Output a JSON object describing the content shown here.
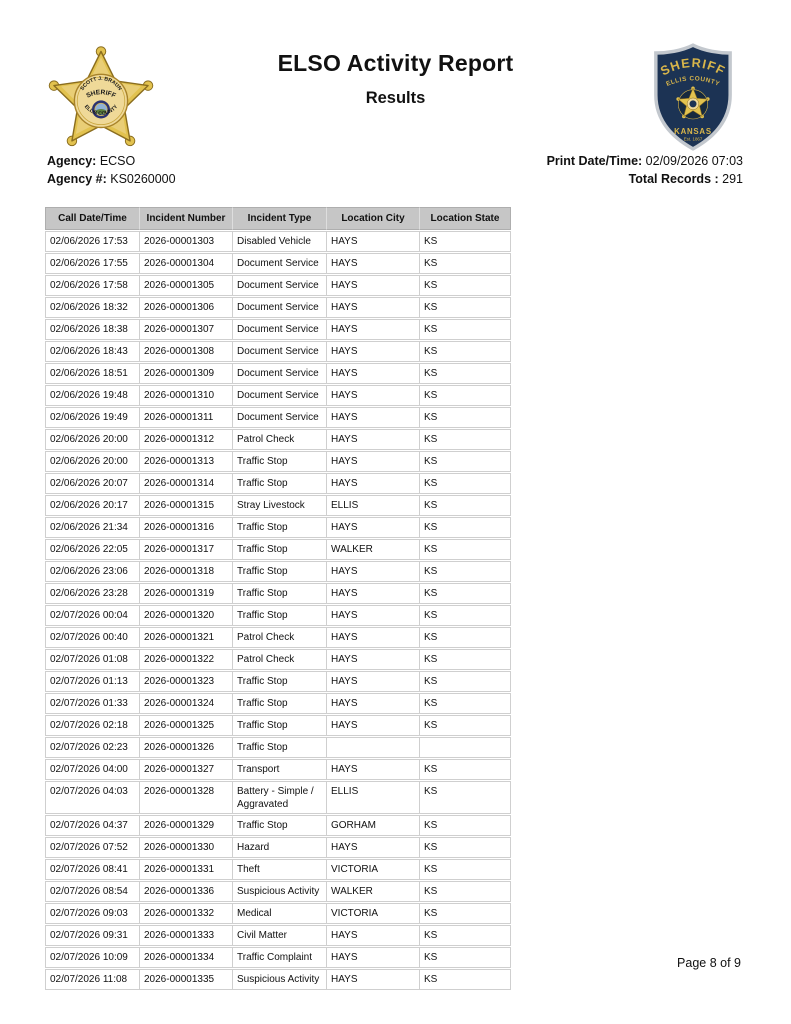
{
  "header": {
    "title": "ELSO Activity Report",
    "subtitle": "Results",
    "left_badge": {
      "name_text": "SCOTT J. BRAUN",
      "title_text": "SHERIFF",
      "county_text": "ELLIS COUNTY"
    },
    "right_badge": {
      "title_text": "SHERIFF",
      "county_text": "ELLIS COUNTY",
      "state_text": "KANSAS",
      "est_text": "Est. 1867"
    }
  },
  "info": {
    "agency_label": "Agency:",
    "agency_value": "ECSO",
    "agency_num_label": "Agency #:",
    "agency_num_value": "KS0260000",
    "print_label": "Print Date/Time:",
    "print_value": "02/09/2026 07:03",
    "total_label": "Total Records :",
    "total_value": "291"
  },
  "colors": {
    "table_header_bg": "#c6c6c6",
    "badge_gold": "#e2c24f",
    "badge_navy": "#1c3354"
  },
  "table": {
    "columns": [
      "Call Date/Time",
      "Incident Number",
      "Incident Type",
      "Location City",
      "Location State"
    ],
    "rows": [
      [
        "02/06/2026 17:53",
        "2026-00001303",
        "Disabled Vehicle",
        "HAYS",
        "KS"
      ],
      [
        "02/06/2026 17:55",
        "2026-00001304",
        "Document Service",
        "HAYS",
        "KS"
      ],
      [
        "02/06/2026 17:58",
        "2026-00001305",
        "Document Service",
        "HAYS",
        "KS"
      ],
      [
        "02/06/2026 18:32",
        "2026-00001306",
        "Document Service",
        "HAYS",
        "KS"
      ],
      [
        "02/06/2026 18:38",
        "2026-00001307",
        "Document Service",
        "HAYS",
        "KS"
      ],
      [
        "02/06/2026 18:43",
        "2026-00001308",
        "Document Service",
        "HAYS",
        "KS"
      ],
      [
        "02/06/2026 18:51",
        "2026-00001309",
        "Document Service",
        "HAYS",
        "KS"
      ],
      [
        "02/06/2026 19:48",
        "2026-00001310",
        "Document Service",
        "HAYS",
        "KS"
      ],
      [
        "02/06/2026 19:49",
        "2026-00001311",
        "Document Service",
        "HAYS",
        "KS"
      ],
      [
        "02/06/2026 20:00",
        "2026-00001312",
        "Patrol Check",
        "HAYS",
        "KS"
      ],
      [
        "02/06/2026 20:00",
        "2026-00001313",
        "Traffic Stop",
        "HAYS",
        "KS"
      ],
      [
        "02/06/2026 20:07",
        "2026-00001314",
        "Traffic Stop",
        "HAYS",
        "KS"
      ],
      [
        "02/06/2026 20:17",
        "2026-00001315",
        "Stray Livestock",
        "ELLIS",
        "KS"
      ],
      [
        "02/06/2026 21:34",
        "2026-00001316",
        "Traffic Stop",
        "HAYS",
        "KS"
      ],
      [
        "02/06/2026 22:05",
        "2026-00001317",
        "Traffic Stop",
        "WALKER",
        "KS"
      ],
      [
        "02/06/2026 23:06",
        "2026-00001318",
        "Traffic Stop",
        "HAYS",
        "KS"
      ],
      [
        "02/06/2026 23:28",
        "2026-00001319",
        "Traffic Stop",
        "HAYS",
        "KS"
      ],
      [
        "02/07/2026 00:04",
        "2026-00001320",
        "Traffic Stop",
        "HAYS",
        "KS"
      ],
      [
        "02/07/2026 00:40",
        "2026-00001321",
        "Patrol Check",
        "HAYS",
        "KS"
      ],
      [
        "02/07/2026 01:08",
        "2026-00001322",
        "Patrol Check",
        "HAYS",
        "KS"
      ],
      [
        "02/07/2026 01:13",
        "2026-00001323",
        "Traffic Stop",
        "HAYS",
        "KS"
      ],
      [
        "02/07/2026 01:33",
        "2026-00001324",
        "Traffic Stop",
        "HAYS",
        "KS"
      ],
      [
        "02/07/2026 02:18",
        "2026-00001325",
        "Traffic Stop",
        "HAYS",
        "KS"
      ],
      [
        "02/07/2026 02:23",
        "2026-00001326",
        "Traffic Stop",
        "",
        ""
      ],
      [
        "02/07/2026 04:00",
        "2026-00001327",
        "Transport",
        "HAYS",
        "KS"
      ],
      [
        "02/07/2026 04:03",
        "2026-00001328",
        "Battery - Simple / Aggravated",
        "ELLIS",
        "KS"
      ],
      [
        "02/07/2026 04:37",
        "2026-00001329",
        "Traffic Stop",
        "GORHAM",
        "KS"
      ],
      [
        "02/07/2026 07:52",
        "2026-00001330",
        "Hazard",
        "HAYS",
        "KS"
      ],
      [
        "02/07/2026 08:41",
        "2026-00001331",
        "Theft",
        "VICTORIA",
        "KS"
      ],
      [
        "02/07/2026 08:54",
        "2026-00001336",
        "Suspicious Activity",
        "WALKER",
        "KS"
      ],
      [
        "02/07/2026 09:03",
        "2026-00001332",
        "Medical",
        "VICTORIA",
        "KS"
      ],
      [
        "02/07/2026 09:31",
        "2026-00001333",
        "Civil Matter",
        "HAYS",
        "KS"
      ],
      [
        "02/07/2026 10:09",
        "2026-00001334",
        "Traffic Complaint",
        "HAYS",
        "KS"
      ],
      [
        "02/07/2026 11:08",
        "2026-00001335",
        "Suspicious Activity",
        "HAYS",
        "KS"
      ]
    ]
  },
  "footer": {
    "page_label": "Page 8 of 9"
  }
}
